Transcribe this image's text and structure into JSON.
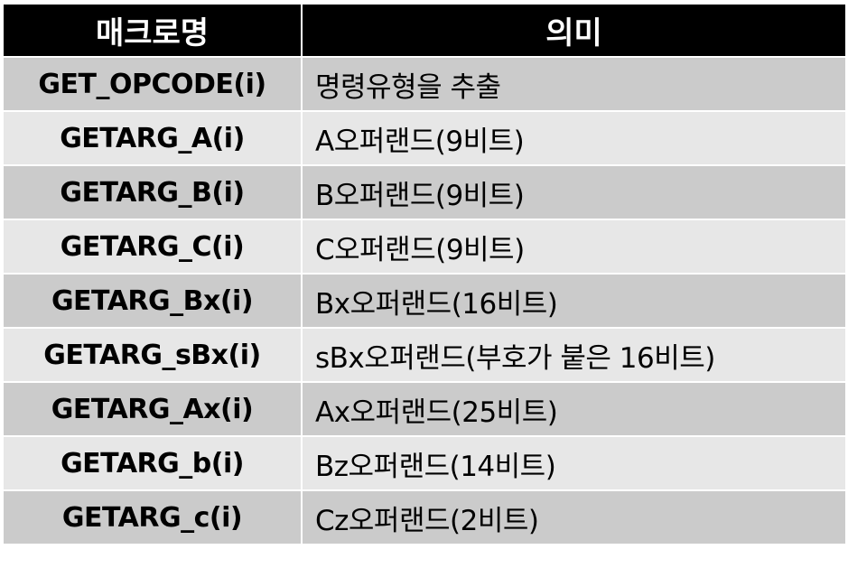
{
  "table": {
    "headers": [
      "매크로명",
      "의미"
    ],
    "rows": [
      {
        "macro": "GET_OPCODE(i)",
        "meaning": "명령유형을 추출"
      },
      {
        "macro": "GETARG_A(i)",
        "meaning": "A오퍼랜드(9비트)"
      },
      {
        "macro": "GETARG_B(i)",
        "meaning": "B오퍼랜드(9비트)"
      },
      {
        "macro": "GETARG_C(i)",
        "meaning": "C오퍼랜드(9비트)"
      },
      {
        "macro": "GETARG_Bx(i)",
        "meaning": "Bx오퍼랜드(16비트)"
      },
      {
        "macro": "GETARG_sBx(i)",
        "meaning": "sBx오퍼랜드(부호가 붙은 16비트)"
      },
      {
        "macro": "GETARG_Ax(i)",
        "meaning": "Ax오퍼랜드(25비트)"
      },
      {
        "macro": "GETARG_b(i)",
        "meaning": "Bz오퍼랜드(14비트)"
      },
      {
        "macro": "GETARG_c(i)",
        "meaning": "Cz오퍼랜드(2비트)"
      }
    ]
  },
  "colors": {
    "header_bg": "#000000",
    "header_text": "#ffffff",
    "row_dark": "#cbcbcb",
    "row_light": "#e7e7e7"
  }
}
